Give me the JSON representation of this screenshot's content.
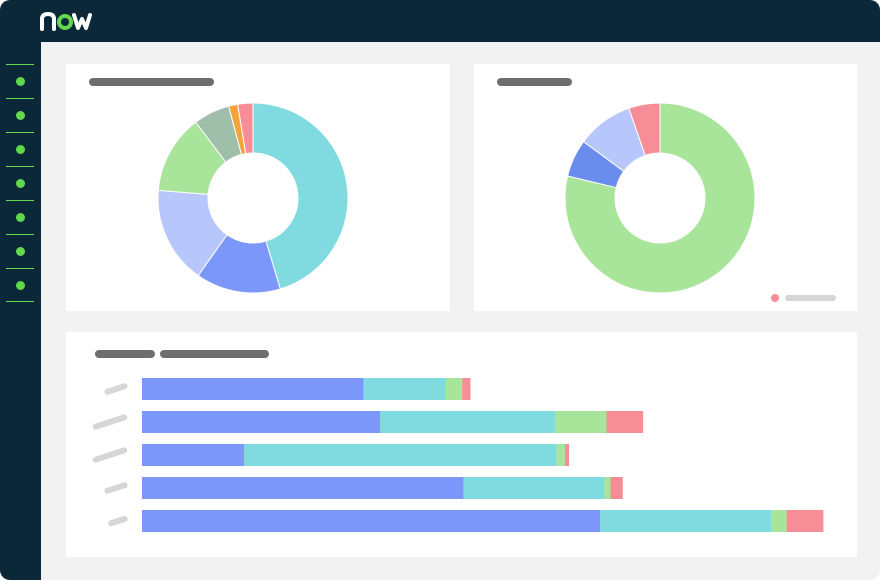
{
  "app": {
    "logo_text": "now"
  },
  "colors": {
    "navy": "#0b2838",
    "green_accent": "#62d84e",
    "teal": "#80dbe0",
    "blue": "#7b97fa",
    "lavender": "#b8c7fb",
    "light_green": "#a8e49a",
    "sage": "#9fbfaa",
    "orange": "#f3a33b",
    "pink": "#f78d97",
    "bright_blue": "#6a8cec"
  },
  "sidebar": {
    "items": [
      {
        "icon": "nav-dot-icon"
      },
      {
        "icon": "nav-dot-icon"
      },
      {
        "icon": "nav-dot-icon"
      },
      {
        "icon": "nav-dot-icon"
      },
      {
        "icon": "nav-dot-icon"
      },
      {
        "icon": "nav-dot-icon"
      },
      {
        "icon": "nav-dot-icon"
      }
    ]
  },
  "chart_data": [
    {
      "type": "pie",
      "variant": "donut",
      "series": [
        {
          "value": 44,
          "color": "#80dbe0"
        },
        {
          "value": 14,
          "color": "#7b97fa"
        },
        {
          "value": 16,
          "color": "#b8c7fb"
        },
        {
          "value": 13,
          "color": "#a8e49a"
        },
        {
          "value": 6,
          "color": "#9fbfaa"
        },
        {
          "value": 1.5,
          "color": "#f3a33b"
        },
        {
          "value": 2.5,
          "color": "#f78d97"
        }
      ]
    },
    {
      "type": "pie",
      "variant": "donut",
      "legend": "bottom-right",
      "series": [
        {
          "value": 74,
          "color": "#a8e49a"
        },
        {
          "value": 6,
          "color": "#6a8cec"
        },
        {
          "value": 9,
          "color": "#b8c7fb"
        },
        {
          "value": 5,
          "color": "#f78d97"
        }
      ]
    },
    {
      "type": "bar",
      "orientation": "horizontal",
      "stacked": true,
      "xlim": [
        0,
        100
      ],
      "series": [
        {
          "color": "#7b97fa",
          "values": [
            32.6,
            35.0,
            15.0,
            47.3,
            67.4
          ]
        },
        {
          "color": "#80dbe0",
          "values": [
            12.1,
            25.8,
            46.0,
            20.7,
            25.2
          ]
        },
        {
          "color": "#a8e49a",
          "values": [
            2.4,
            7.5,
            1.2,
            0.9,
            2.2
          ]
        },
        {
          "color": "#f78d97",
          "values": [
            1.2,
            5.4,
            0.6,
            1.8,
            5.4
          ]
        }
      ]
    }
  ]
}
